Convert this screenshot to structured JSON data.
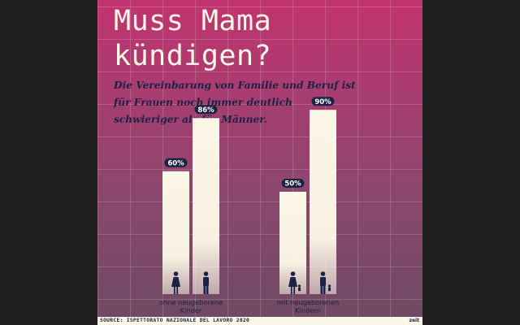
{
  "infographic": {
    "title_line1": "Muss Mama",
    "title_line2": "kündigen?",
    "subtitle": "Die Vereinbarung von Familie und Beruf ist für Frauen noch immer deutlich schwieriger als für Männer.",
    "source": "SOURCE: ISPETTORATO NAZIONALE DEL LAVORO 2020",
    "logo": "zeit"
  },
  "colors": {
    "bar": "#fbf6e6",
    "badge": "#1b2244",
    "badge_text": "#ffffff",
    "icon": "#1b2244",
    "category_text": "#1b2244"
  },
  "chart_data": {
    "type": "bar",
    "ylim": [
      0,
      100
    ],
    "grid": true,
    "groups": [
      {
        "label_lines": [
          "ohne neugeborene",
          "Kinder"
        ],
        "bars": [
          {
            "value": 60,
            "label": "60%",
            "icon": "woman-icon"
          },
          {
            "value": 86,
            "label": "86%",
            "icon": "man-icon"
          }
        ]
      },
      {
        "label_lines": [
          "mit neugeborenen",
          "Kindern"
        ],
        "bars": [
          {
            "value": 50,
            "label": "50%",
            "icon": "woman-with-child-icon"
          },
          {
            "value": 90,
            "label": "90%",
            "icon": "man-with-child-icon"
          }
        ]
      }
    ]
  }
}
